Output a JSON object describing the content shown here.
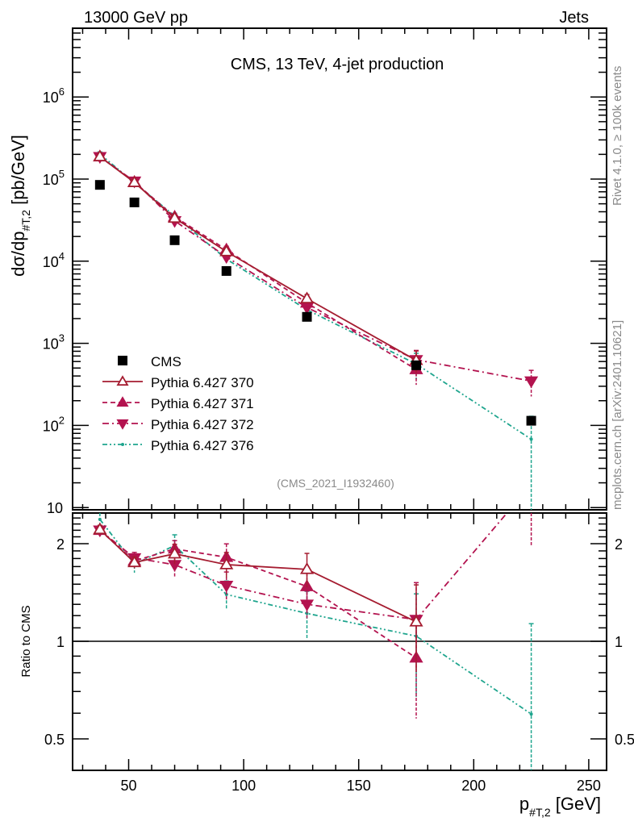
{
  "header": {
    "left": "13000 GeV pp",
    "right": "Jets"
  },
  "side_text": {
    "top": "Rivet 4.1.0, ≥ 100k events",
    "bottom": "mcplots.cern.ch [arXiv:2401.10621]"
  },
  "colors": {
    "s370": "#a51c30",
    "s371": "#b3134f",
    "s372": "#b3134f",
    "s376": "#1fa58e",
    "data": "#000000"
  },
  "chart_data": [
    {
      "type": "scatter",
      "panel": "main",
      "title": "CMS, 13 TeV, 4-jet production",
      "watermark": "(CMS_2021_I1932460)",
      "ylabel_main": "dσ/dp",
      "ylabel_sub": "#T,2",
      "ylabel_unit": " [pb/GeV]",
      "yscale": "log",
      "ylim": [
        10,
        680000
      ],
      "xlim": [
        25.6,
        257.7
      ],
      "ytick_labels": [
        {
          "base": "10",
          "exp": ""
        },
        {
          "base": "10",
          "exp": "2"
        },
        {
          "base": "10",
          "exp": "3"
        },
        {
          "base": "10",
          "exp": "4"
        },
        {
          "base": "10",
          "exp": "5"
        },
        {
          "base": "10",
          "exp": "6"
        }
      ],
      "ytick_values": [
        10,
        100,
        1000,
        10000,
        100000,
        1000000
      ],
      "legend_position": "bottom-left",
      "x": [
        37.5,
        52.5,
        70,
        92.5,
        127.5,
        175,
        225
      ],
      "data": {
        "name": "CMS",
        "values": [
          85000,
          52000,
          18000,
          7600,
          2100,
          540,
          114
        ]
      },
      "series": [
        {
          "name": "Pythia 6.427 370",
          "key": "s370",
          "marker": "open-up",
          "dash": "",
          "values": [
            188000,
            91000,
            33500,
            13100,
            3500,
            620,
            null
          ],
          "rel_err": [
            0.03,
            0.04,
            0.07,
            0.09,
            0.12,
            0.3,
            0
          ]
        },
        {
          "name": "Pythia 6.427 371",
          "key": "s371",
          "marker": "up",
          "dash": "6,4",
          "values": [
            187000,
            92000,
            34700,
            13800,
            3100,
            480,
            null
          ],
          "rel_err": [
            0.03,
            0.04,
            0.06,
            0.1,
            0.1,
            0.35,
            0
          ]
        },
        {
          "name": "Pythia 6.427 372",
          "key": "s372",
          "marker": "down",
          "dash": "8,4,2,4",
          "values": [
            187000,
            94000,
            31000,
            11300,
            2730,
            630,
            347
          ],
          "rel_err": [
            0.03,
            0.04,
            0.08,
            0.1,
            0.1,
            0.3,
            0.35
          ]
        },
        {
          "name": "Pythia 6.427 376",
          "key": "s376",
          "marker": "dot",
          "dash": "6,3,2,3,2,3",
          "values": [
            202000,
            90000,
            35500,
            10600,
            2560,
            560,
            68
          ],
          "rel_err": [
            0.06,
            0.06,
            0.08,
            0.1,
            0.17,
            0.35,
            0.9
          ]
        }
      ]
    },
    {
      "type": "line",
      "panel": "ratio",
      "ylabel": "Ratio to CMS",
      "yscale": "log",
      "ylim": [
        0.4,
        2.49
      ],
      "ytick_values": [
        0.5,
        1,
        2
      ],
      "ytick_labels": [
        "0.5",
        "1",
        "2"
      ],
      "xlabel_main": "p",
      "xlabel_sub": "#T,2",
      "xlabel_unit": " [GeV]",
      "xtick_values": [
        50,
        100,
        150,
        200,
        250
      ],
      "xtick_labels": [
        "50",
        "100",
        "150",
        "200",
        "250"
      ]
    }
  ]
}
